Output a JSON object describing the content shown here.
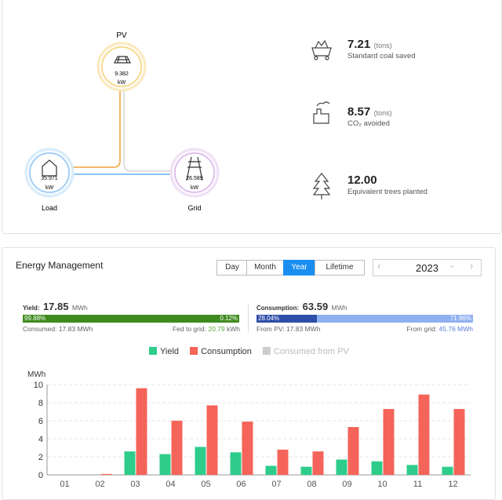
{
  "flow": {
    "pv": {
      "label": "PV",
      "value": "9.382",
      "unit": "kW"
    },
    "load": {
      "label": "Load",
      "value": "35.971",
      "unit": "kW"
    },
    "grid": {
      "label": "Grid",
      "value": "26.589",
      "unit": "kW"
    }
  },
  "stats": [
    {
      "value": "7.21",
      "unit": "(tons)",
      "label": "Standard coal saved"
    },
    {
      "value": "8.57",
      "unit": "(tons)",
      "label": "CO₂ avoided"
    },
    {
      "value": "12.00",
      "label": "Equivalent trees planted"
    }
  ],
  "energy": {
    "title": "Energy Management",
    "tabs": [
      "Day",
      "Month",
      "Year",
      "Lifetime"
    ],
    "year": "2023",
    "yield": {
      "label": "Yield:",
      "value": "17.85",
      "unit": "MWh",
      "split": [
        {
          "value": 99.88,
          "label": "99.88%"
        },
        {
          "value": 0.12,
          "label": "0.12%"
        }
      ],
      "consumed": "Consumed: 17.83 MWh",
      "fed_label": "Fed to grid:",
      "fed_value": "20.79",
      "fed_unit": "kWh"
    },
    "consumption": {
      "label": "Consumption:",
      "value": "63.59",
      "unit": "MWh",
      "split": [
        {
          "value": 28.04,
          "label": "28.04%"
        },
        {
          "value": 71.96,
          "label": "71.96%"
        }
      ],
      "from_pv_label": "From PV:",
      "from_pv_value": "17.83 MWh",
      "from_grid_label": "From grid:",
      "from_grid_value": "45.76 MWh"
    }
  },
  "chart_data": {
    "type": "bar",
    "y_label": "MWh",
    "categories": [
      "01",
      "02",
      "03",
      "04",
      "05",
      "06",
      "07",
      "08",
      "09",
      "10",
      "11",
      "12"
    ],
    "series": [
      {
        "name": "Yield",
        "color": "#2ecc8a",
        "values": [
          0,
          0,
          2.6,
          2.3,
          3.1,
          2.5,
          1.0,
          0.9,
          1.7,
          1.5,
          1.1,
          0.9
        ]
      },
      {
        "name": "Consumption",
        "color": "#f4645a",
        "values": [
          0,
          0.1,
          9.6,
          6.0,
          7.7,
          5.9,
          2.8,
          2.6,
          5.3,
          7.3,
          8.9,
          7.3
        ]
      },
      {
        "name": "Consumed from PV",
        "color": "#cccccc"
      }
    ],
    "ylim": [
      0,
      10
    ],
    "yticks": [
      0,
      2,
      4,
      6,
      8,
      10
    ],
    "grid": true
  }
}
